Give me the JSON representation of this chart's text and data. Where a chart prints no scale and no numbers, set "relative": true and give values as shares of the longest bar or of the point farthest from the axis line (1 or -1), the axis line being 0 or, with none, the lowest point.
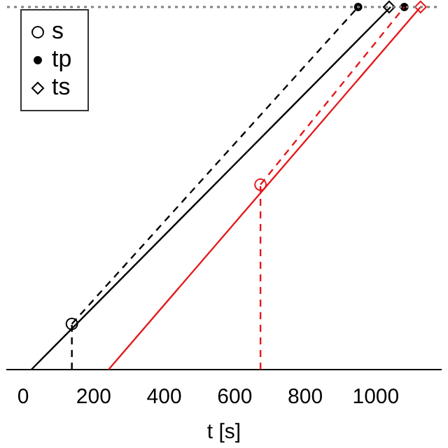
{
  "chart_data": {
    "type": "line",
    "relative": true,
    "xlabel": "t [s]",
    "xlim": [
      -46,
      1185
    ],
    "xticks": [
      0,
      200,
      400,
      600,
      800,
      1000
    ],
    "legend": "top left",
    "grid": false,
    "ref_lines": [
      {
        "axis": "y",
        "value": 1,
        "color": "#808080",
        "line_style": "dotted"
      }
    ],
    "series": [
      {
        "color": "#000000",
        "line_style": "solid",
        "marker": "none",
        "x": [
          23,
          1042
        ],
        "values": [
          0,
          1
        ]
      },
      {
        "color": "#000000",
        "line_style": "dashed",
        "marker": "none",
        "x": [
          138,
          950
        ],
        "values": [
          0.126,
          1
        ]
      },
      {
        "color": "#000000",
        "line_style": "dashed",
        "marker": "none",
        "x": [
          138,
          138
        ],
        "values": [
          0,
          0.126
        ]
      },
      {
        "color": "#e41a1c",
        "line_style": "solid",
        "marker": "none",
        "x": [
          242,
          1127
        ],
        "values": [
          0,
          1
        ]
      },
      {
        "color": "#e41a1c",
        "line_style": "dashed",
        "marker": "none",
        "x": [
          673,
          1081
        ],
        "values": [
          0.51,
          1
        ]
      },
      {
        "color": "#e41a1c",
        "line_style": "dashed",
        "marker": "none",
        "x": [
          673,
          673
        ],
        "values": [
          0,
          0.51
        ]
      },
      {
        "type": "scatter",
        "name": "s",
        "marker": "circle",
        "color": "#000000",
        "colors": [
          "#000000",
          "#e41a1c"
        ],
        "x": [
          138,
          673
        ],
        "values": [
          0.126,
          0.51
        ]
      },
      {
        "type": "scatter",
        "name": "tp",
        "marker": "circle",
        "color": "#000000",
        "colors": [
          "#000000",
          "#000000"
        ],
        "x": [
          950,
          1081
        ],
        "values": [
          1,
          1
        ]
      },
      {
        "type": "scatter",
        "name": "ts",
        "marker": "diamond",
        "color": "#000000",
        "colors": [
          "#000000",
          "#e41a1c"
        ],
        "x": [
          1038,
          1127
        ],
        "values": [
          1,
          1
        ]
      }
    ]
  }
}
